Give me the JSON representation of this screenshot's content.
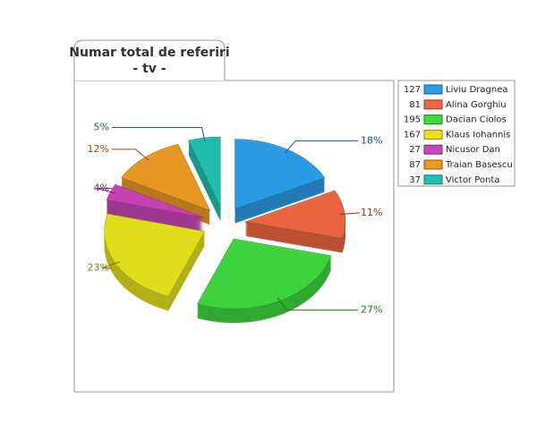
{
  "chart_data": {
    "type": "pie",
    "title": "Numar total de referiri",
    "subtitle": "- tv -",
    "categories": [
      "Liviu Dragnea",
      "Alina Gorghiu",
      "Dacian Ciolos",
      "Klaus Iohannis",
      "Nicusor Dan",
      "Traian Basescu",
      "Victor Ponta"
    ],
    "values": [
      127,
      81,
      195,
      167,
      27,
      87,
      37
    ],
    "percent_labels": [
      "18%",
      "11%",
      "27%",
      "23%",
      "4%",
      "12%",
      "5%"
    ],
    "colors": [
      "#2b9ee8",
      "#ee6740",
      "#3fd83f",
      "#e6e21e",
      "#c946b8",
      "#ec9a24",
      "#22c2b2"
    ],
    "legend": "right"
  }
}
